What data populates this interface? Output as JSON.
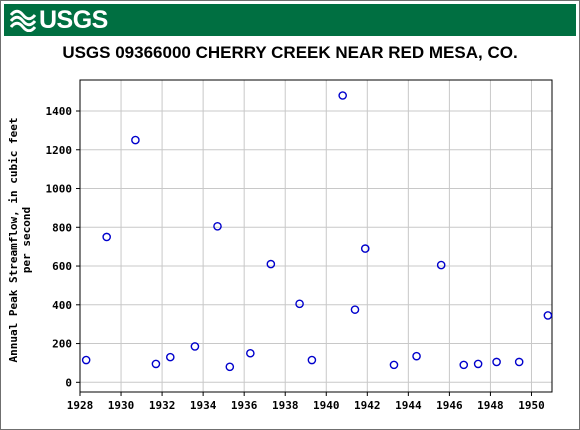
{
  "header": {
    "logo_text": "USGS",
    "logo_icon": "usgs-wave-icon",
    "brand_color": "#006f41"
  },
  "chart_data": {
    "type": "scatter",
    "title": "USGS 09366000 CHERRY CREEK NEAR RED MESA, CO.",
    "xlabel": "",
    "ylabel_lines": [
      "Annual Peak Streamflow, in cubic feet",
      "per second"
    ],
    "xlim": [
      1928,
      1951
    ],
    "ylim": [
      -50,
      1560
    ],
    "x_ticks": [
      1928,
      1930,
      1932,
      1934,
      1936,
      1938,
      1940,
      1942,
      1944,
      1946,
      1948,
      1950
    ],
    "y_ticks": [
      0,
      200,
      400,
      600,
      800,
      1000,
      1200,
      1400
    ],
    "grid": true,
    "marker_color": "#0000cc",
    "series": [
      {
        "x": [
          1928.3,
          1929.3,
          1930.7,
          1931.7,
          1932.4,
          1933.6,
          1934.7,
          1935.3,
          1936.3,
          1937.3,
          1938.7,
          1939.3,
          1940.8,
          1941.4,
          1941.9,
          1943.3,
          1944.4,
          1945.6,
          1946.7,
          1947.4,
          1948.3,
          1949.4,
          1950.8
        ],
        "y": [
          115,
          750,
          1250,
          95,
          130,
          185,
          805,
          80,
          150,
          610,
          405,
          115,
          1480,
          375,
          690,
          90,
          135,
          605,
          90,
          95,
          105,
          105,
          345
        ]
      }
    ]
  }
}
